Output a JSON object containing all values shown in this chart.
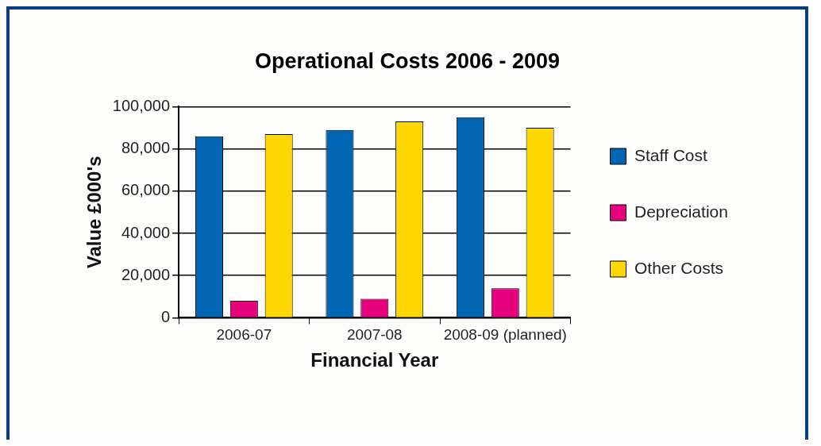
{
  "chart_data": {
    "type": "bar",
    "title": "Operational Costs 2006 - 2009",
    "xlabel": "Financial Year",
    "ylabel": "Value £000's",
    "categories": [
      "2006-07",
      "2007-08",
      "2008-09 (planned)"
    ],
    "series": [
      {
        "name": "Staff Cost",
        "color": "#0066b3",
        "values": [
          86000,
          89000,
          95000
        ]
      },
      {
        "name": "Depreciation",
        "color": "#e6007e",
        "values": [
          8000,
          9000,
          14000
        ]
      },
      {
        "name": "Other Costs",
        "color": "#ffd700",
        "values": [
          87000,
          93000,
          90000
        ]
      }
    ],
    "ylim": [
      0,
      100000
    ],
    "yticks": [
      0,
      {
        "value": 20000,
        "label": "20,000"
      },
      {
        "value": 40000,
        "label": "40,000"
      },
      {
        "value": 60000,
        "label": "60,000"
      },
      {
        "value": 80000,
        "label": "80,000"
      },
      {
        "value": 100000,
        "label": "100,000"
      }
    ],
    "grid": "y",
    "legend": "right"
  }
}
